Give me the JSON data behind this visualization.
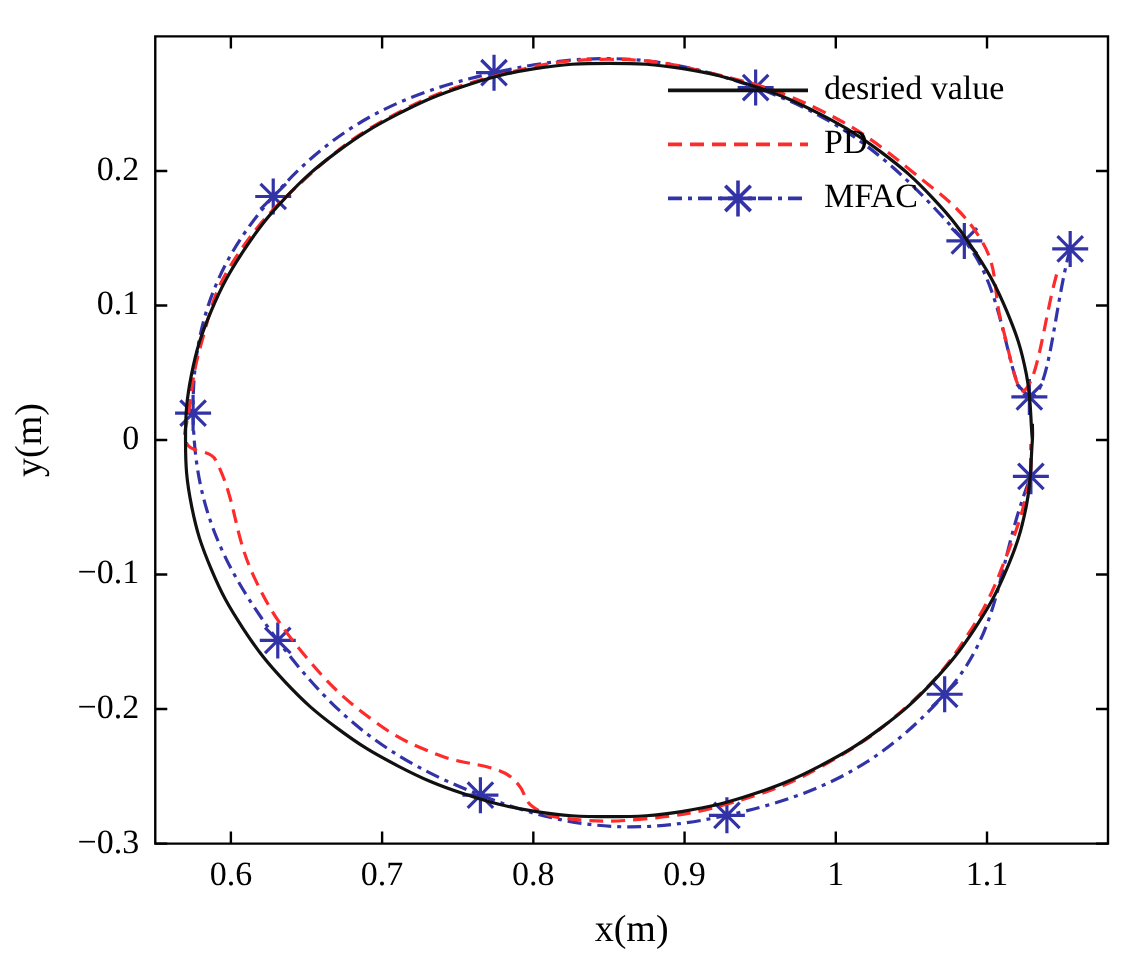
{
  "chart_data": {
    "type": "line",
    "xlabel": "x(m)",
    "ylabel": "y(m)",
    "xlim": [
      0.55,
      1.18
    ],
    "ylim": [
      -0.3,
      0.3
    ],
    "xticks": [
      0.6,
      0.7,
      0.8,
      0.9,
      1,
      1.1
    ],
    "yticks": [
      -0.3,
      -0.2,
      -0.1,
      0,
      0.1,
      0.2
    ],
    "grid": false,
    "legend": "top right",
    "series": [
      {
        "name": "desried value",
        "color": "#111111",
        "line_style": "solid",
        "marker": "none",
        "x": [
          1.13,
          1.126,
          1.113,
          1.092,
          1.064,
          1.03,
          0.99,
          0.946,
          0.899,
          0.85,
          0.801,
          0.754,
          0.71,
          0.67,
          0.636,
          0.608,
          0.587,
          0.574,
          0.57,
          0.574,
          0.587,
          0.608,
          0.636,
          0.67,
          0.71,
          0.754,
          0.801,
          0.85,
          0.899,
          0.946,
          0.99,
          1.03,
          1.064,
          1.092,
          1.113,
          1.126,
          1.13,
          1.13
        ],
        "values": [
          0,
          0.049,
          0.096,
          0.14,
          0.18,
          0.214,
          0.242,
          0.263,
          0.276,
          0.28,
          0.276,
          0.263,
          0.242,
          0.214,
          0.18,
          0.14,
          0.096,
          0.049,
          0,
          -0.049,
          -0.096,
          -0.14,
          -0.18,
          -0.214,
          -0.242,
          -0.263,
          -0.276,
          -0.28,
          -0.276,
          -0.263,
          -0.242,
          -0.214,
          -0.18,
          -0.14,
          -0.096,
          -0.049,
          0,
          0.012
        ]
      },
      {
        "name": "PD",
        "color": "#ff2a2a",
        "line_style": "dashed",
        "marker": "none",
        "x": [
          1.146,
          1.125,
          1.11,
          1.097,
          1.05,
          0.99,
          0.92,
          0.85,
          0.78,
          0.71,
          0.65,
          0.6,
          0.58,
          0.572,
          0.571,
          0.59,
          0.615,
          0.651,
          0.696,
          0.737,
          0.778,
          0.79,
          0.799,
          0.819,
          0.87,
          0.93,
          0.99,
          1.05,
          1.09,
          1.115,
          1.128,
          1.129
        ],
        "values": [
          0.123,
          0.037,
          0.085,
          0.147,
          0.2,
          0.245,
          0.272,
          0.283,
          0.272,
          0.243,
          0.195,
          0.13,
          0.07,
          0.02,
          -0.003,
          -0.015,
          -0.101,
          -0.163,
          -0.21,
          -0.234,
          -0.246,
          -0.256,
          -0.272,
          -0.281,
          -0.282,
          -0.27,
          -0.243,
          -0.195,
          -0.14,
          -0.08,
          -0.03,
          -0.003
        ]
      },
      {
        "name": "MFAC",
        "color": "#3333a8",
        "line_style": "dashdot",
        "marker": "cross",
        "x": [
          1.155,
          1.128,
          1.085,
          0.947,
          0.774,
          0.628,
          0.575,
          0.631,
          0.765,
          0.928,
          1.072,
          1.129
        ],
        "values": [
          0.142,
          0.032,
          0.148,
          0.262,
          0.273,
          0.181,
          0.02,
          -0.149,
          -0.264,
          -0.279,
          -0.189,
          -0.027
        ]
      }
    ]
  }
}
